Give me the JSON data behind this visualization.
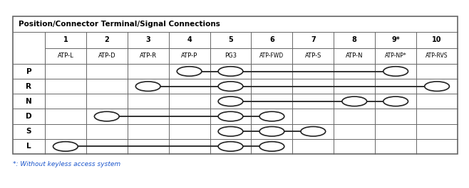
{
  "title": "Position/Connector Terminal/Signal Connections",
  "footnote": "*: Without keyless access system",
  "col_numbers": [
    "1",
    "2",
    "3",
    "4",
    "5",
    "6",
    "7",
    "8",
    "9*",
    "10"
  ],
  "col_signals": [
    "ATP-L",
    "ATP-D",
    "ATP-R",
    "ATP-P",
    "PG3",
    "ATP-FWD",
    "ATP-S",
    "ATP-N",
    "ATP-NP*",
    "ATP-RVS"
  ],
  "row_labels": [
    "P",
    "R",
    "N",
    "D",
    "S",
    "L"
  ],
  "connections": {
    "P": {
      "circles": [
        4,
        5,
        9
      ],
      "lines": [
        [
          4,
          9
        ]
      ]
    },
    "R": {
      "circles": [
        3,
        5,
        10
      ],
      "lines": [
        [
          3,
          5
        ],
        [
          5,
          10
        ]
      ]
    },
    "N": {
      "circles": [
        5,
        8,
        9
      ],
      "lines": [
        [
          5,
          9
        ]
      ]
    },
    "D": {
      "circles": [
        2,
        5,
        6
      ],
      "lines": [
        [
          2,
          6
        ]
      ]
    },
    "S": {
      "circles": [
        5,
        6,
        7
      ],
      "lines": [
        [
          5,
          7
        ]
      ]
    },
    "L": {
      "circles": [
        1,
        5,
        6
      ],
      "lines": [
        [
          1,
          6
        ]
      ]
    }
  },
  "border_color": "#666666",
  "grid_color": "#888888",
  "line_color": "#222222",
  "text_color": "#000000",
  "circle_facecolor": "white",
  "circle_edgecolor": "#222222",
  "footnote_color": "#1a55cc"
}
